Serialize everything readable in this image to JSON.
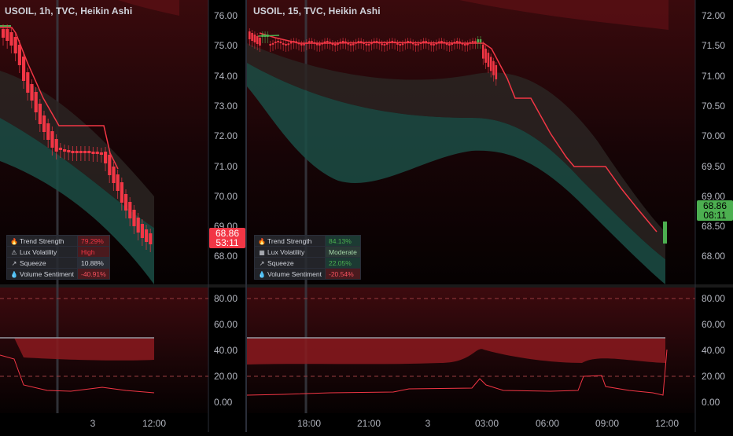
{
  "left_chart": {
    "title": "USOIL, 1h, TVC, Heikin Ashi",
    "price_tag": {
      "price": "68.86",
      "countdown": "53:11",
      "color": "#f23645"
    },
    "y_labels": [
      "76.00",
      "75.00",
      "74.00",
      "73.00",
      "72.00",
      "71.00",
      "70.00",
      "69.00",
      "68.00"
    ],
    "x_labels": [
      "3",
      "12:00"
    ],
    "table": [
      {
        "icon": "flame-icon",
        "glyph": "🔥",
        "label": "Trend Strength",
        "value": "79.29%",
        "value_color": "#f23645",
        "bg": "#4a1a1e"
      },
      {
        "icon": "warning-icon",
        "glyph": "⚠",
        "label": "Lux Volatility",
        "value": "High",
        "value_color": "#f23645",
        "bg": "#4a1a1e"
      },
      {
        "icon": "arrow-up-right-icon",
        "glyph": "↗",
        "label": "Squeeze",
        "value": "10.88%",
        "value_color": "#d1d4dc",
        "bg": "#2a2d35"
      },
      {
        "icon": "droplet-icon",
        "glyph": "💧",
        "label": "Volume Sentiment",
        "value": "-40.91%",
        "value_color": "#f7525f",
        "bg": "#4a1a1e"
      }
    ]
  },
  "right_chart": {
    "title": "USOIL, 15, TVC, Heikin Ashi",
    "price_tag": {
      "price": "68.86",
      "countdown": "08:11",
      "color": "#4caf50"
    },
    "y_labels": [
      "72.00",
      "71.50",
      "71.00",
      "70.50",
      "70.00",
      "69.50",
      "69.00",
      "68.50",
      "68.00"
    ],
    "x_labels": [
      "18:00",
      "21:00",
      "3",
      "03:00",
      "06:00",
      "09:00",
      "12:00"
    ],
    "table": [
      {
        "icon": "flame-icon",
        "glyph": "🔥",
        "label": "Trend Strength",
        "value": "84.13%",
        "value_color": "#4caf50",
        "bg": "#1c3a33"
      },
      {
        "icon": "squares-icon",
        "glyph": "▦",
        "label": "Lux Volatility",
        "value": "Moderate",
        "value_color": "#a5d6a7",
        "bg": "#2a3a35"
      },
      {
        "icon": "arrow-up-right-icon",
        "glyph": "↗",
        "label": "Squeeze",
        "value": "22.05%",
        "value_color": "#4caf50",
        "bg": "#1c3a33"
      },
      {
        "icon": "droplet-icon",
        "glyph": "💧",
        "label": "Volume Sentiment",
        "value": "-20.54%",
        "value_color": "#f7525f",
        "bg": "#4a1a1e"
      }
    ]
  },
  "oscillator": {
    "y_labels": [
      "80.00",
      "60.00",
      "40.00",
      "20.00",
      "0.00"
    ]
  },
  "colors": {
    "bear": "#f23645",
    "bull": "#4caf50",
    "band_teal": "#1b4d45"
  }
}
